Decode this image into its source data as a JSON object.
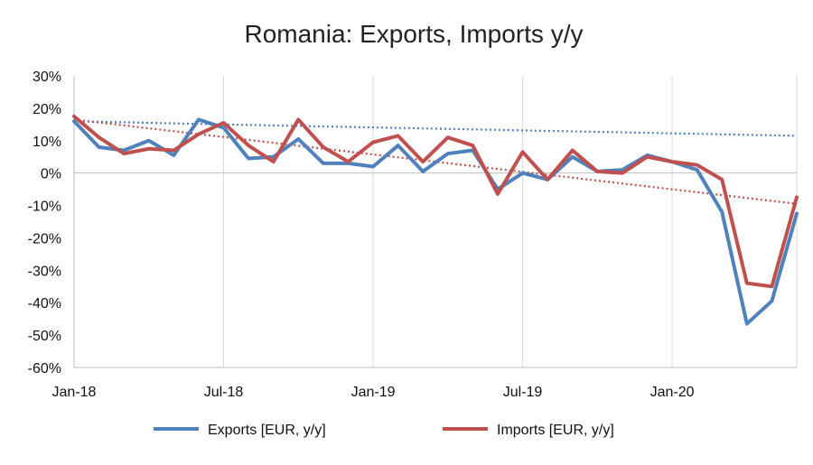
{
  "chart_data": {
    "type": "line",
    "title": "Romania: Exports, Imports y/y",
    "xlabel": "",
    "ylabel": "",
    "ylim": [
      -60,
      30
    ],
    "y_ticks": [
      "30%",
      "20%",
      "10%",
      "0%",
      "-10%",
      "-20%",
      "-30%",
      "-40%",
      "-50%",
      "-60%"
    ],
    "y_tick_values": [
      30,
      20,
      10,
      0,
      -10,
      -20,
      -30,
      -40,
      -50,
      -60
    ],
    "x_tick_labels": [
      "Jan-18",
      "Jul-18",
      "Jan-19",
      "Jul-19",
      "Jan-20"
    ],
    "x_tick_index": [
      0,
      6,
      12,
      18,
      24
    ],
    "x": [
      "Jan-18",
      "Feb-18",
      "Mar-18",
      "Apr-18",
      "May-18",
      "Jun-18",
      "Jul-18",
      "Aug-18",
      "Sep-18",
      "Oct-18",
      "Nov-18",
      "Dec-18",
      "Jan-19",
      "Feb-19",
      "Mar-19",
      "Apr-19",
      "May-19",
      "Jun-19",
      "Jul-19",
      "Aug-19",
      "Sep-19",
      "Oct-19",
      "Nov-19",
      "Dec-19",
      "Jan-20",
      "Feb-20",
      "Mar-20",
      "Apr-20",
      "May-20",
      "Jun-20"
    ],
    "grid": "vertical",
    "legend_position": "bottom",
    "series": [
      {
        "name": "Exports [EUR, y/y]",
        "color": "#4F81BD",
        "values": [
          16,
          8,
          7,
          10,
          5.5,
          16.5,
          14,
          4.5,
          5,
          10.5,
          3,
          3,
          2,
          8.5,
          0.5,
          6,
          7,
          -5,
          0,
          -2,
          5,
          0.5,
          1,
          5.5,
          3.5,
          1,
          -12,
          -46.5,
          -39.5,
          -12.5
        ],
        "trend": [
          16,
          14.8,
          13.7,
          12.6,
          11.5
        ]
      },
      {
        "name": "Imports [EUR, y/y]",
        "color": "#C0504D",
        "values": [
          17.5,
          11,
          6,
          7.5,
          7,
          12,
          15.5,
          8.5,
          3.5,
          16.5,
          8,
          3.5,
          9.5,
          11.5,
          3.5,
          11,
          8.5,
          -6.5,
          6.5,
          -2,
          7,
          0.5,
          0,
          5,
          3.5,
          2.5,
          -2,
          -34,
          -35,
          -7.5
        ],
        "trend": [
          16.5,
          -9.5
        ]
      }
    ]
  }
}
